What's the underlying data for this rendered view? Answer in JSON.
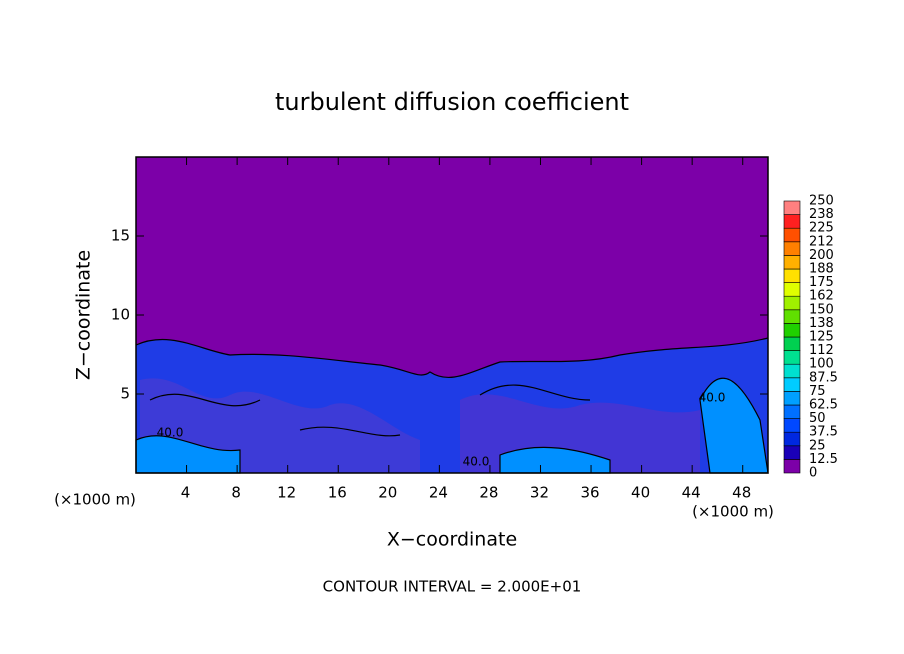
{
  "chart_data": {
    "type": "contour",
    "title": "turbulent diffusion coefficient",
    "x_label": "X−coordinate",
    "y_label": "Z−coordinate",
    "x_unit": "(×1000 m)",
    "y_unit": "(×1000 m)",
    "xlim": [
      0,
      50
    ],
    "xticks": [
      4,
      8,
      12,
      16,
      20,
      24,
      28,
      32,
      36,
      40,
      44,
      48
    ],
    "ylim": [
      0,
      20
    ],
    "yticks": [
      5,
      10,
      15
    ],
    "contour_label": "40.0",
    "footer": "CONTOUR INTERVAL = 2.000E+01",
    "colorbar": {
      "levels": [
        0,
        12.5,
        25,
        37.5,
        50,
        62.5,
        75,
        87.5,
        100,
        112,
        125,
        138,
        150,
        162,
        175,
        188,
        200,
        212,
        225,
        238,
        250
      ],
      "colors": [
        "#7c00a8",
        "#1a00b8",
        "#0028e0",
        "#0048ff",
        "#0070ff",
        "#00a0ff",
        "#00ccff",
        "#00e0d0",
        "#00e090",
        "#00d050",
        "#20d000",
        "#60e000",
        "#a0f000",
        "#e0ff00",
        "#ffe000",
        "#ffb000",
        "#ff8000",
        "#ff5000",
        "#ff2020",
        "#ff8080"
      ]
    }
  }
}
